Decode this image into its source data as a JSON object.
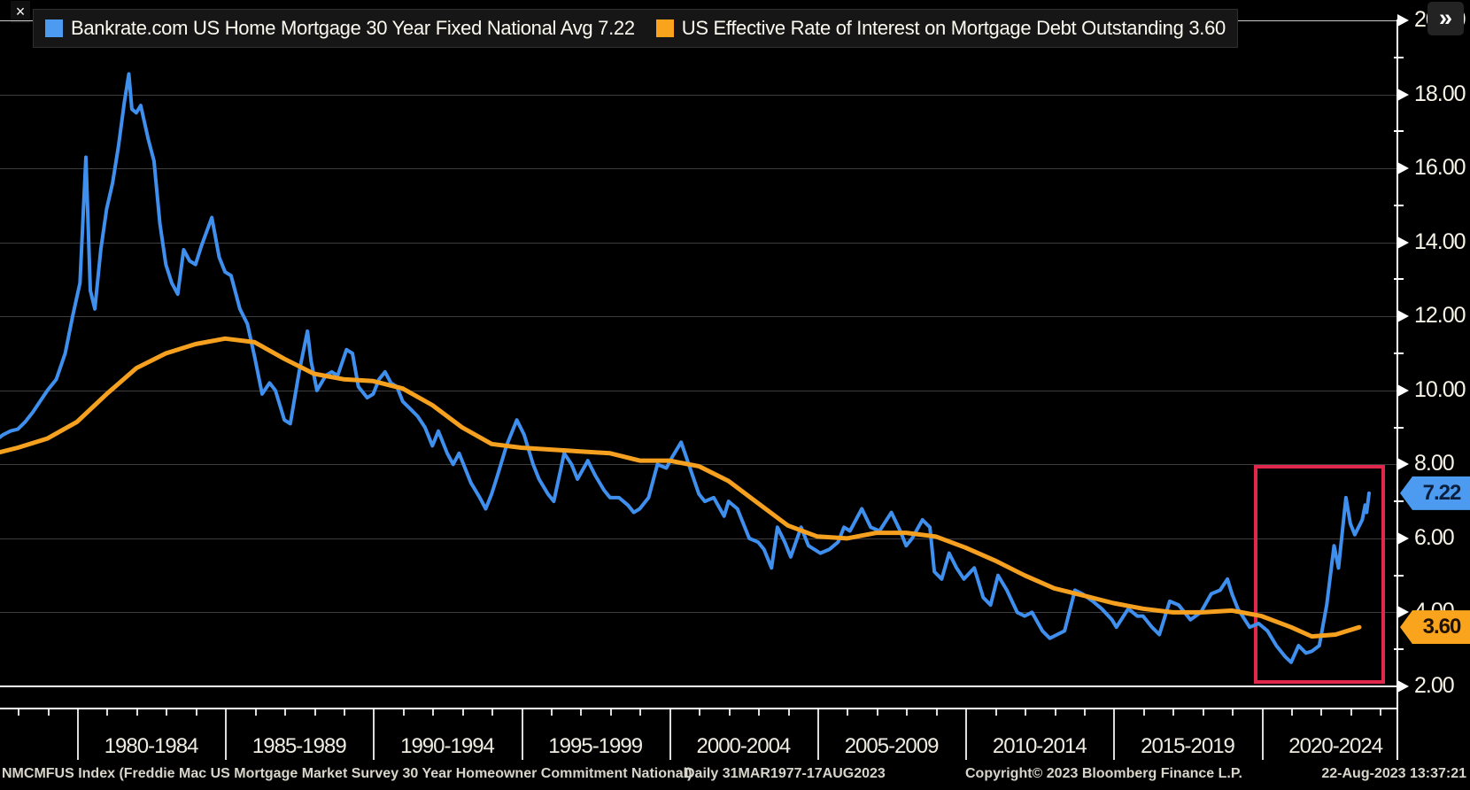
{
  "window": {
    "close_glyph": "×",
    "expand_glyph": "»"
  },
  "legend": {
    "items": [
      {
        "text": "Bankrate.com US Home Mortgage 30 Year Fixed National Avg 7.22",
        "color": "#4d9bf0"
      },
      {
        "text": "US Effective Rate of Interest on Mortgage Debt Outstanding 3.60",
        "color": "#f9a41c"
      }
    ]
  },
  "value_tags": [
    {
      "value": "7.22",
      "numeric": 7.22,
      "bg": "#4d9bf0",
      "fg": "#0b1f3c"
    },
    {
      "value": "3.60",
      "numeric": 3.6,
      "bg": "#f9a41c",
      "fg": "#201200"
    }
  ],
  "footer": {
    "index_info": "NMCMFUS Index (Freddie Mac US Mortgage Market Survey 30 Year Homeowner Commitment National)",
    "periodicity_range": "Daily 31MAR1977-17AUG2023",
    "copyright": "Copyright© 2023 Bloomberg Finance L.P.",
    "timestamp": "22-Aug-2023 13:37:21"
  },
  "chart_data": {
    "type": "line",
    "title": "",
    "background": "#000000",
    "grid": true,
    "legend_position": "top",
    "x_axis": {
      "start_year": 1977.25,
      "end_year": 2023.63,
      "period_label_start_years": [
        1980,
        1985,
        1990,
        1995,
        2000,
        2005,
        2010,
        2015,
        2020
      ],
      "period_labels": [
        "1980-1984",
        "1985-1989",
        "1990-1994",
        "1995-1999",
        "2000-2004",
        "2005-2009",
        "2010-2014",
        "2015-2019",
        "2020-2024"
      ],
      "minor_ticks": "annual"
    },
    "y_axis": {
      "min": 2,
      "max": 20,
      "tick_step": 2,
      "tick_labels": [
        "2.00",
        "4.00",
        "6.00",
        "8.00",
        "10.00",
        "12.00",
        "14.00",
        "16.00",
        "18.00",
        "20.00"
      ],
      "minor_ticks": [
        3,
        5,
        7,
        9,
        11,
        13,
        15,
        17,
        19
      ],
      "side": "right"
    },
    "series": [
      {
        "name": "Bankrate.com US Home Mortgage 30 Year Fixed National Avg",
        "last_value": 7.22,
        "color": "#3f8fee",
        "stroke_width": 4,
        "points": [
          [
            1977.25,
            8.65
          ],
          [
            1977.5,
            8.8
          ],
          [
            1977.75,
            8.9
          ],
          [
            1978.0,
            8.95
          ],
          [
            1978.25,
            9.15
          ],
          [
            1978.5,
            9.4
          ],
          [
            1978.75,
            9.7
          ],
          [
            1979.0,
            10.0
          ],
          [
            1979.3,
            10.3
          ],
          [
            1979.6,
            11.0
          ],
          [
            1979.85,
            12.0
          ],
          [
            1980.1,
            12.9
          ],
          [
            1980.3,
            16.3
          ],
          [
            1980.45,
            12.7
          ],
          [
            1980.6,
            12.2
          ],
          [
            1980.8,
            13.8
          ],
          [
            1981.0,
            14.9
          ],
          [
            1981.2,
            15.6
          ],
          [
            1981.4,
            16.6
          ],
          [
            1981.6,
            17.8
          ],
          [
            1981.75,
            18.55
          ],
          [
            1981.85,
            17.6
          ],
          [
            1982.0,
            17.5
          ],
          [
            1982.15,
            17.7
          ],
          [
            1982.4,
            16.8
          ],
          [
            1982.6,
            16.2
          ],
          [
            1982.8,
            14.5
          ],
          [
            1983.0,
            13.4
          ],
          [
            1983.2,
            12.9
          ],
          [
            1983.4,
            12.6
          ],
          [
            1983.6,
            13.8
          ],
          [
            1983.8,
            13.5
          ],
          [
            1984.0,
            13.4
          ],
          [
            1984.2,
            13.9
          ],
          [
            1984.55,
            14.67
          ],
          [
            1984.8,
            13.6
          ],
          [
            1985.0,
            13.2
          ],
          [
            1985.2,
            13.1
          ],
          [
            1985.5,
            12.2
          ],
          [
            1985.75,
            11.8
          ],
          [
            1986.0,
            10.9
          ],
          [
            1986.25,
            9.9
          ],
          [
            1986.5,
            10.2
          ],
          [
            1986.7,
            10.0
          ],
          [
            1987.0,
            9.2
          ],
          [
            1987.2,
            9.1
          ],
          [
            1987.5,
            10.5
          ],
          [
            1987.78,
            11.6
          ],
          [
            1987.9,
            10.8
          ],
          [
            1988.1,
            10.0
          ],
          [
            1988.4,
            10.4
          ],
          [
            1988.6,
            10.5
          ],
          [
            1988.8,
            10.4
          ],
          [
            1989.1,
            11.1
          ],
          [
            1989.3,
            11.0
          ],
          [
            1989.5,
            10.1
          ],
          [
            1989.8,
            9.8
          ],
          [
            1990.0,
            9.9
          ],
          [
            1990.2,
            10.3
          ],
          [
            1990.4,
            10.5
          ],
          [
            1990.6,
            10.2
          ],
          [
            1990.8,
            10.1
          ],
          [
            1991.0,
            9.7
          ],
          [
            1991.25,
            9.5
          ],
          [
            1991.5,
            9.3
          ],
          [
            1991.75,
            9.0
          ],
          [
            1992.0,
            8.5
          ],
          [
            1992.2,
            8.9
          ],
          [
            1992.5,
            8.3
          ],
          [
            1992.7,
            8.0
          ],
          [
            1992.9,
            8.3
          ],
          [
            1993.1,
            7.9
          ],
          [
            1993.3,
            7.5
          ],
          [
            1993.6,
            7.1
          ],
          [
            1993.8,
            6.8
          ],
          [
            1994.0,
            7.2
          ],
          [
            1994.2,
            7.7
          ],
          [
            1994.5,
            8.5
          ],
          [
            1994.85,
            9.2
          ],
          [
            1995.1,
            8.8
          ],
          [
            1995.4,
            8.0
          ],
          [
            1995.6,
            7.6
          ],
          [
            1995.9,
            7.2
          ],
          [
            1996.1,
            7.0
          ],
          [
            1996.45,
            8.3
          ],
          [
            1996.7,
            8.0
          ],
          [
            1996.9,
            7.6
          ],
          [
            1997.25,
            8.1
          ],
          [
            1997.5,
            7.7
          ],
          [
            1997.8,
            7.3
          ],
          [
            1998.0,
            7.1
          ],
          [
            1998.3,
            7.1
          ],
          [
            1998.6,
            6.9
          ],
          [
            1998.8,
            6.7
          ],
          [
            1999.0,
            6.8
          ],
          [
            1999.3,
            7.1
          ],
          [
            1999.6,
            8.0
          ],
          [
            1999.9,
            7.9
          ],
          [
            2000.1,
            8.2
          ],
          [
            2000.4,
            8.6
          ],
          [
            2000.7,
            7.9
          ],
          [
            2001.0,
            7.2
          ],
          [
            2001.2,
            7.0
          ],
          [
            2001.5,
            7.1
          ],
          [
            2001.85,
            6.6
          ],
          [
            2002.0,
            7.0
          ],
          [
            2002.3,
            6.8
          ],
          [
            2002.7,
            6.0
          ],
          [
            2003.0,
            5.9
          ],
          [
            2003.2,
            5.7
          ],
          [
            2003.45,
            5.2
          ],
          [
            2003.65,
            6.3
          ],
          [
            2003.9,
            5.9
          ],
          [
            2004.1,
            5.5
          ],
          [
            2004.45,
            6.3
          ],
          [
            2004.7,
            5.8
          ],
          [
            2004.9,
            5.7
          ],
          [
            2005.1,
            5.6
          ],
          [
            2005.4,
            5.7
          ],
          [
            2005.7,
            5.9
          ],
          [
            2005.9,
            6.3
          ],
          [
            2006.1,
            6.2
          ],
          [
            2006.5,
            6.8
          ],
          [
            2006.8,
            6.3
          ],
          [
            2007.1,
            6.2
          ],
          [
            2007.5,
            6.7
          ],
          [
            2007.8,
            6.2
          ],
          [
            2008.0,
            5.8
          ],
          [
            2008.2,
            6.0
          ],
          [
            2008.55,
            6.5
          ],
          [
            2008.8,
            6.3
          ],
          [
            2008.95,
            5.1
          ],
          [
            2009.2,
            4.9
          ],
          [
            2009.45,
            5.6
          ],
          [
            2009.7,
            5.2
          ],
          [
            2009.95,
            4.9
          ],
          [
            2010.3,
            5.2
          ],
          [
            2010.6,
            4.4
          ],
          [
            2010.85,
            4.2
          ],
          [
            2011.1,
            5.0
          ],
          [
            2011.4,
            4.6
          ],
          [
            2011.75,
            4.0
          ],
          [
            2012.0,
            3.9
          ],
          [
            2012.25,
            4.0
          ],
          [
            2012.6,
            3.5
          ],
          [
            2012.85,
            3.3
          ],
          [
            2013.1,
            3.4
          ],
          [
            2013.35,
            3.5
          ],
          [
            2013.7,
            4.6
          ],
          [
            2013.95,
            4.5
          ],
          [
            2014.3,
            4.3
          ],
          [
            2014.6,
            4.1
          ],
          [
            2014.95,
            3.8
          ],
          [
            2015.1,
            3.6
          ],
          [
            2015.5,
            4.1
          ],
          [
            2015.8,
            3.9
          ],
          [
            2016.0,
            3.9
          ],
          [
            2016.3,
            3.6
          ],
          [
            2016.55,
            3.4
          ],
          [
            2016.9,
            4.3
          ],
          [
            2017.2,
            4.2
          ],
          [
            2017.6,
            3.8
          ],
          [
            2017.95,
            4.0
          ],
          [
            2018.3,
            4.5
          ],
          [
            2018.6,
            4.6
          ],
          [
            2018.85,
            4.9
          ],
          [
            2019.0,
            4.5
          ],
          [
            2019.2,
            4.1
          ],
          [
            2019.6,
            3.6
          ],
          [
            2019.9,
            3.7
          ],
          [
            2020.2,
            3.5
          ],
          [
            2020.5,
            3.1
          ],
          [
            2020.8,
            2.8
          ],
          [
            2021.0,
            2.65
          ],
          [
            2021.25,
            3.1
          ],
          [
            2021.5,
            2.9
          ],
          [
            2021.7,
            2.95
          ],
          [
            2021.95,
            3.1
          ],
          [
            2022.2,
            4.2
          ],
          [
            2022.45,
            5.8
          ],
          [
            2022.6,
            5.2
          ],
          [
            2022.85,
            7.1
          ],
          [
            2023.0,
            6.4
          ],
          [
            2023.15,
            6.1
          ],
          [
            2023.4,
            6.5
          ],
          [
            2023.5,
            6.9
          ],
          [
            2023.55,
            6.7
          ],
          [
            2023.63,
            7.22
          ]
        ]
      },
      {
        "name": "US Effective Rate of Interest on Mortgage Debt Outstanding",
        "last_value": 3.6,
        "color": "#f5a01e",
        "stroke_width": 5,
        "points": [
          [
            1977.25,
            8.3
          ],
          [
            1978,
            8.45
          ],
          [
            1979,
            8.7
          ],
          [
            1980,
            9.15
          ],
          [
            1981,
            9.9
          ],
          [
            1982,
            10.6
          ],
          [
            1983,
            11.0
          ],
          [
            1984,
            11.25
          ],
          [
            1985,
            11.4
          ],
          [
            1986,
            11.3
          ],
          [
            1987,
            10.85
          ],
          [
            1988,
            10.45
          ],
          [
            1989,
            10.3
          ],
          [
            1990,
            10.25
          ],
          [
            1991,
            10.05
          ],
          [
            1992,
            9.6
          ],
          [
            1993,
            9.0
          ],
          [
            1994,
            8.55
          ],
          [
            1995,
            8.45
          ],
          [
            1996,
            8.4
          ],
          [
            1997,
            8.35
          ],
          [
            1998,
            8.3
          ],
          [
            1999,
            8.1
          ],
          [
            2000,
            8.1
          ],
          [
            2001,
            7.95
          ],
          [
            2002,
            7.55
          ],
          [
            2003,
            6.95
          ],
          [
            2004,
            6.35
          ],
          [
            2005,
            6.05
          ],
          [
            2006,
            6.0
          ],
          [
            2007,
            6.15
          ],
          [
            2008,
            6.15
          ],
          [
            2009,
            6.05
          ],
          [
            2010,
            5.75
          ],
          [
            2011,
            5.4
          ],
          [
            2012,
            5.0
          ],
          [
            2013,
            4.65
          ],
          [
            2014,
            4.45
          ],
          [
            2015,
            4.25
          ],
          [
            2016,
            4.1
          ],
          [
            2017,
            4.0
          ],
          [
            2018,
            4.0
          ],
          [
            2019,
            4.05
          ],
          [
            2020,
            3.9
          ],
          [
            2021,
            3.6
          ],
          [
            2021.7,
            3.35
          ],
          [
            2022.5,
            3.4
          ],
          [
            2023.3,
            3.6
          ]
        ]
      }
    ],
    "annotation_box": {
      "year_from": 2019.8,
      "year_to": 2024.1,
      "value_from": 2.12,
      "value_to": 7.94,
      "color": "#e1274b"
    }
  }
}
